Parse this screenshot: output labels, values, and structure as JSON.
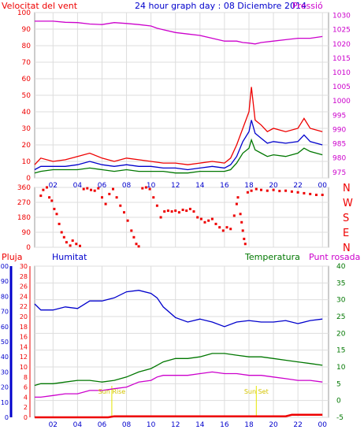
{
  "chart_data": [
    {
      "type": "line",
      "title": "24 hour graph day : 08 Diciembre 2014",
      "left_label": "Velocitat del vent",
      "right_label": "Pressió",
      "x_ticks": [
        "02",
        "04",
        "06",
        "08",
        "10",
        "12",
        "14",
        "16",
        "18",
        "20",
        "22",
        "00"
      ],
      "y_left": {
        "ticks": [
          0,
          10,
          20,
          30,
          40,
          50,
          60,
          70,
          80,
          90,
          100
        ],
        "range": [
          0,
          100
        ]
      },
      "y_right": {
        "ticks": [
          975,
          980,
          985,
          990,
          995,
          1000,
          1005,
          1010,
          1015,
          1020,
          1025,
          1030
        ],
        "range": [
          973,
          1031
        ]
      },
      "x_range": [
        0.5,
        24.5
      ],
      "series": [
        {
          "color": "#cc00cc",
          "axis": "right",
          "x": [
            0.5,
            1,
            2,
            3,
            4,
            5,
            6,
            7,
            8,
            9,
            10,
            10.5,
            11,
            12,
            13,
            14,
            15,
            16,
            17,
            17.5,
            18,
            18.5,
            19,
            20,
            21,
            22,
            23,
            24
          ],
          "y": [
            1028,
            1028,
            1028,
            1027.6,
            1027.5,
            1027,
            1026.8,
            1027.5,
            1027.2,
            1026.8,
            1026.3,
            1025.5,
            1025,
            1024,
            1023.5,
            1023,
            1022,
            1021,
            1021,
            1020.5,
            1020.3,
            1020,
            1020.5,
            1021,
            1021.5,
            1022,
            1022,
            1022.6
          ]
        },
        {
          "color": "#ee0000",
          "axis": "left",
          "x": [
            0.5,
            1,
            2,
            3,
            4,
            5,
            6,
            7,
            8,
            9,
            10,
            11,
            12,
            13,
            14,
            15,
            16,
            16.5,
            17,
            17.5,
            18,
            18.2,
            18.5,
            19,
            19.5,
            20,
            21,
            22,
            22.5,
            23,
            24
          ],
          "y": [
            8,
            12,
            10,
            11,
            13,
            15,
            12,
            10,
            12,
            11,
            10,
            9,
            9,
            8,
            9,
            10,
            9,
            12,
            20,
            30,
            40,
            55,
            35,
            32,
            28,
            30,
            28,
            30,
            36,
            30,
            28
          ]
        },
        {
          "color": "#0000cc",
          "axis": "left",
          "x": [
            0.5,
            1,
            2,
            3,
            4,
            5,
            6,
            7,
            8,
            9,
            10,
            11,
            12,
            13,
            14,
            15,
            16,
            16.5,
            17,
            17.5,
            18,
            18.2,
            18.5,
            19,
            19.5,
            20,
            21,
            22,
            22.5,
            23,
            24
          ],
          "y": [
            5,
            7,
            7,
            7,
            8,
            10,
            8,
            7,
            8,
            7,
            7,
            6,
            6,
            5,
            6,
            7,
            6,
            8,
            13,
            22,
            28,
            35,
            27,
            24,
            21,
            22,
            21,
            22,
            26,
            22,
            20
          ]
        },
        {
          "color": "#007700",
          "axis": "left",
          "x": [
            0.5,
            1,
            2,
            3,
            4,
            5,
            6,
            7,
            8,
            9,
            10,
            11,
            12,
            13,
            14,
            15,
            16,
            16.5,
            17,
            17.5,
            18,
            18.2,
            18.5,
            19,
            19.5,
            20,
            21,
            22,
            22.5,
            23,
            24
          ],
          "y": [
            3,
            4,
            5,
            5,
            5,
            6,
            5,
            4,
            5,
            4,
            4,
            4,
            3,
            3,
            4,
            4,
            4,
            5,
            9,
            15,
            18,
            23,
            17,
            15,
            13,
            14,
            13,
            15,
            18,
            16,
            14
          ]
        }
      ]
    },
    {
      "type": "scatter",
      "y_ticks": [
        0,
        90,
        180,
        270,
        360
      ],
      "y_range": [
        0,
        360
      ],
      "right_labels": [
        "N",
        "W",
        "S",
        "E",
        "N"
      ],
      "x_range": [
        0.5,
        24.5
      ],
      "color": "#ee0000",
      "points": [
        [
          1.0,
          310
        ],
        [
          1.2,
          345
        ],
        [
          1.5,
          360
        ],
        [
          1.7,
          300
        ],
        [
          1.9,
          280
        ],
        [
          2.1,
          230
        ],
        [
          2.3,
          200
        ],
        [
          2.5,
          140
        ],
        [
          2.7,
          90
        ],
        [
          2.9,
          60
        ],
        [
          3.1,
          30
        ],
        [
          3.4,
          10
        ],
        [
          3.6,
          40
        ],
        [
          3.9,
          20
        ],
        [
          4.2,
          8
        ],
        [
          4.5,
          350
        ],
        [
          4.8,
          355
        ],
        [
          5.1,
          345
        ],
        [
          5.4,
          340
        ],
        [
          5.7,
          355
        ],
        [
          6.0,
          300
        ],
        [
          6.3,
          260
        ],
        [
          6.6,
          320
        ],
        [
          6.9,
          350
        ],
        [
          7.2,
          300
        ],
        [
          7.5,
          250
        ],
        [
          7.8,
          210
        ],
        [
          8.1,
          160
        ],
        [
          8.4,
          100
        ],
        [
          8.6,
          60
        ],
        [
          8.8,
          20
        ],
        [
          9.0,
          5
        ],
        [
          9.3,
          355
        ],
        [
          9.6,
          360
        ],
        [
          9.9,
          350
        ],
        [
          10.2,
          300
        ],
        [
          10.5,
          250
        ],
        [
          10.8,
          180
        ],
        [
          11.1,
          215
        ],
        [
          11.4,
          220
        ],
        [
          11.7,
          215
        ],
        [
          12.0,
          220
        ],
        [
          12.3,
          210
        ],
        [
          12.6,
          225
        ],
        [
          12.9,
          220
        ],
        [
          13.2,
          230
        ],
        [
          13.5,
          215
        ],
        [
          13.8,
          180
        ],
        [
          14.1,
          170
        ],
        [
          14.4,
          150
        ],
        [
          14.7,
          160
        ],
        [
          15.0,
          170
        ],
        [
          15.3,
          140
        ],
        [
          15.6,
          120
        ],
        [
          15.9,
          100
        ],
        [
          16.2,
          120
        ],
        [
          16.5,
          110
        ],
        [
          16.8,
          190
        ],
        [
          17.0,
          260
        ],
        [
          17.1,
          300
        ],
        [
          17.3,
          200
        ],
        [
          17.4,
          150
        ],
        [
          17.5,
          100
        ],
        [
          17.6,
          50
        ],
        [
          17.7,
          20
        ],
        [
          17.9,
          330
        ],
        [
          18.2,
          340
        ],
        [
          18.6,
          350
        ],
        [
          19.0,
          345
        ],
        [
          19.5,
          340
        ],
        [
          20.0,
          345
        ],
        [
          20.5,
          338
        ],
        [
          21.0,
          340
        ],
        [
          21.5,
          335
        ],
        [
          22.0,
          330
        ],
        [
          22.5,
          325
        ],
        [
          23.0,
          320
        ],
        [
          23.5,
          315
        ],
        [
          24.0,
          315
        ]
      ]
    },
    {
      "type": "line",
      "header_labels": [
        "Pluja",
        "Humitat",
        "Temperatura",
        "Punt rosada"
      ],
      "y_axis_humidity": {
        "ticks": [
          0,
          10,
          20,
          30,
          40,
          50,
          60,
          70,
          80,
          90,
          100
        ],
        "range": [
          0,
          100
        ]
      },
      "y_axis_rain": {
        "ticks": [
          0,
          2,
          4,
          6,
          8,
          10,
          12,
          14,
          16,
          18,
          20,
          22,
          24,
          26,
          28,
          30
        ],
        "range": [
          0,
          30
        ]
      },
      "y_axis_temp": {
        "ticks": [
          -5,
          0,
          5,
          10,
          15,
          20,
          25,
          30,
          35,
          40
        ],
        "range": [
          -5,
          40
        ]
      },
      "x_ticks": [
        "02",
        "04",
        "06",
        "08",
        "10",
        "12",
        "14",
        "16",
        "18",
        "20",
        "22",
        "00"
      ],
      "x_range": [
        0.5,
        24.5
      ],
      "annotations": [
        {
          "text": "Sun Rise",
          "x": 6.8
        },
        {
          "text": "Sun Set",
          "x": 18.6
        }
      ],
      "series": [
        {
          "color": "#0000cc",
          "axis": "humidity",
          "x": [
            0.5,
            1,
            2,
            3,
            4,
            5,
            6,
            7,
            8,
            9,
            10,
            10.5,
            11,
            12,
            13,
            14,
            15,
            16,
            17,
            18,
            19,
            20,
            21,
            22,
            23,
            24
          ],
          "y": [
            75,
            71,
            71,
            73,
            72,
            77,
            77,
            79,
            83,
            84,
            82,
            79,
            73,
            66,
            63,
            65,
            63,
            60,
            63,
            64,
            63,
            63,
            64,
            62,
            64,
            65
          ]
        },
        {
          "color": "#007700",
          "axis": "temp",
          "x": [
            0.5,
            1,
            2,
            3,
            4,
            5,
            6,
            7,
            8,
            9,
            10,
            10.5,
            11,
            12,
            13,
            14,
            15,
            16,
            17,
            18,
            19,
            20,
            21,
            22,
            23,
            24
          ],
          "y": [
            4.5,
            5,
            5,
            5.5,
            6,
            6,
            5.5,
            6,
            7,
            8.5,
            9.5,
            10.5,
            11.5,
            12.5,
            12.5,
            13,
            14,
            14,
            13.5,
            13,
            13,
            12.5,
            12,
            11.5,
            11,
            10.5
          ]
        },
        {
          "color": "#cc00cc",
          "axis": "temp",
          "x": [
            0.5,
            1,
            2,
            3,
            4,
            5,
            6,
            7,
            8,
            9,
            10,
            10.5,
            11,
            12,
            13,
            14,
            15,
            16,
            17,
            18,
            19,
            20,
            21,
            22,
            23,
            24
          ],
          "y": [
            1,
            1,
            1.5,
            2,
            2,
            3,
            3,
            3.5,
            4,
            5.5,
            6,
            7,
            7.5,
            7.5,
            7.5,
            8,
            8.5,
            8,
            8,
            7.5,
            7.5,
            7,
            6.5,
            6,
            6,
            5.5
          ]
        },
        {
          "color": "#ee0000",
          "axis": "rain",
          "x": [
            0.5,
            6.5,
            7,
            21,
            21.5,
            24
          ],
          "y": [
            0,
            0,
            0.2,
            0.2,
            0.5,
            0.5
          ]
        }
      ]
    }
  ]
}
